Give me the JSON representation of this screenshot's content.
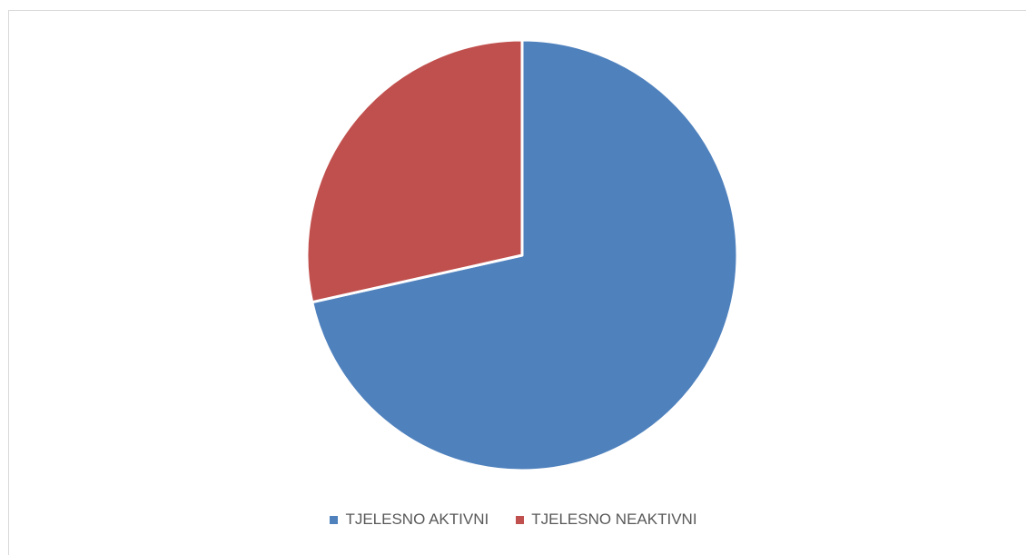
{
  "chart_data": {
    "type": "pie",
    "series": [
      {
        "name": "TJELESNO AKTIVNI",
        "value": 71.5,
        "color": "#4F81BD"
      },
      {
        "name": "TJELESNO NEAKTIVNI",
        "value": 28.5,
        "color": "#C0504D"
      }
    ],
    "title": "",
    "legend_position": "bottom"
  }
}
